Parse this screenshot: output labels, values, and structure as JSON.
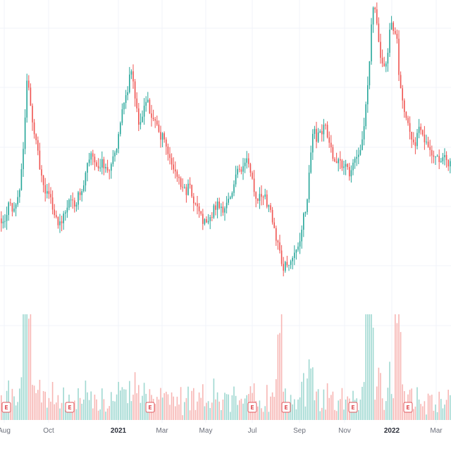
{
  "chart_data": {
    "type": "candlestick",
    "grid": true,
    "colors": {
      "up": "#26a69a",
      "down": "#ef5350",
      "volume_up": "#9fd8d1",
      "volume_down": "#f7b6b4",
      "earnings_marker": "#e0565b",
      "grid": "#f0f3fa"
    },
    "x_tick_labels": [
      {
        "label": "Aug",
        "bold": false
      },
      {
        "label": "Oct",
        "bold": false
      },
      {
        "label": "2021",
        "bold": true
      },
      {
        "label": "Mar",
        "bold": false
      },
      {
        "label": "May",
        "bold": false
      },
      {
        "label": "Jul",
        "bold": false
      },
      {
        "label": "Sep",
        "bold": false
      },
      {
        "label": "Nov",
        "bold": false
      },
      {
        "label": "2022",
        "bold": true
      },
      {
        "label": "Mar",
        "bold": false
      }
    ],
    "earnings_markers": [
      "E",
      "E",
      "E",
      "E",
      "E",
      "E",
      "E"
    ],
    "price_series_note": "",
    "price_path": [
      [
        0,
        0.62
      ],
      [
        5,
        0.63
      ],
      [
        12,
        0.58
      ],
      [
        18,
        0.6
      ],
      [
        24,
        0.57
      ],
      [
        30,
        0.48
      ],
      [
        34,
        0.38
      ],
      [
        38,
        0.2
      ],
      [
        42,
        0.3
      ],
      [
        47,
        0.38
      ],
      [
        52,
        0.42
      ],
      [
        57,
        0.49
      ],
      [
        62,
        0.55
      ],
      [
        68,
        0.54
      ],
      [
        74,
        0.6
      ],
      [
        80,
        0.63
      ],
      [
        86,
        0.64
      ],
      [
        92,
        0.6
      ],
      [
        98,
        0.57
      ],
      [
        104,
        0.58
      ],
      [
        110,
        0.56
      ],
      [
        116,
        0.55
      ],
      [
        122,
        0.46
      ],
      [
        128,
        0.43
      ],
      [
        134,
        0.47
      ],
      [
        140,
        0.48
      ],
      [
        146,
        0.46
      ],
      [
        152,
        0.5
      ],
      [
        158,
        0.47
      ],
      [
        164,
        0.42
      ],
      [
        168,
        0.36
      ],
      [
        172,
        0.32
      ],
      [
        176,
        0.3
      ],
      [
        180,
        0.26
      ],
      [
        184,
        0.2
      ],
      [
        188,
        0.24
      ],
      [
        192,
        0.3
      ],
      [
        196,
        0.34
      ],
      [
        202,
        0.33
      ],
      [
        208,
        0.28
      ],
      [
        214,
        0.33
      ],
      [
        220,
        0.35
      ],
      [
        226,
        0.38
      ],
      [
        232,
        0.4
      ],
      [
        238,
        0.44
      ],
      [
        244,
        0.48
      ],
      [
        250,
        0.5
      ],
      [
        256,
        0.52
      ],
      [
        262,
        0.55
      ],
      [
        268,
        0.53
      ],
      [
        274,
        0.57
      ],
      [
        280,
        0.6
      ],
      [
        286,
        0.62
      ],
      [
        292,
        0.63
      ],
      [
        298,
        0.61
      ],
      [
        304,
        0.59
      ],
      [
        310,
        0.58
      ],
      [
        316,
        0.6
      ],
      [
        322,
        0.58
      ],
      [
        328,
        0.54
      ],
      [
        334,
        0.5
      ],
      [
        340,
        0.48
      ],
      [
        346,
        0.47
      ],
      [
        352,
        0.46
      ],
      [
        356,
        0.49
      ],
      [
        360,
        0.55
      ],
      [
        366,
        0.56
      ],
      [
        372,
        0.54
      ],
      [
        378,
        0.58
      ],
      [
        384,
        0.6
      ],
      [
        390,
        0.66
      ],
      [
        396,
        0.72
      ],
      [
        402,
        0.76
      ],
      [
        408,
        0.75
      ],
      [
        414,
        0.74
      ],
      [
        420,
        0.72
      ],
      [
        426,
        0.66
      ],
      [
        432,
        0.6
      ],
      [
        436,
        0.54
      ],
      [
        440,
        0.44
      ],
      [
        444,
        0.36
      ],
      [
        448,
        0.4
      ],
      [
        454,
        0.38
      ],
      [
        460,
        0.36
      ],
      [
        466,
        0.4
      ],
      [
        472,
        0.44
      ],
      [
        478,
        0.45
      ],
      [
        484,
        0.48
      ],
      [
        490,
        0.47
      ],
      [
        496,
        0.49
      ],
      [
        502,
        0.45
      ],
      [
        508,
        0.44
      ],
      [
        514,
        0.38
      ],
      [
        518,
        0.3
      ],
      [
        522,
        0.22
      ],
      [
        526,
        0.08
      ],
      [
        530,
        0.01
      ],
      [
        534,
        0.08
      ],
      [
        538,
        0.14
      ],
      [
        542,
        0.19
      ],
      [
        546,
        0.2
      ],
      [
        550,
        0.14
      ],
      [
        554,
        0.06
      ],
      [
        558,
        0.08
      ],
      [
        562,
        0.1
      ],
      [
        566,
        0.24
      ],
      [
        570,
        0.28
      ],
      [
        576,
        0.34
      ],
      [
        582,
        0.38
      ],
      [
        588,
        0.41
      ],
      [
        594,
        0.37
      ],
      [
        600,
        0.4
      ],
      [
        606,
        0.42
      ],
      [
        612,
        0.44
      ],
      [
        618,
        0.45
      ],
      [
        624,
        0.47
      ],
      [
        630,
        0.44
      ],
      [
        636,
        0.46
      ],
      [
        640,
        0.45
      ]
    ]
  }
}
